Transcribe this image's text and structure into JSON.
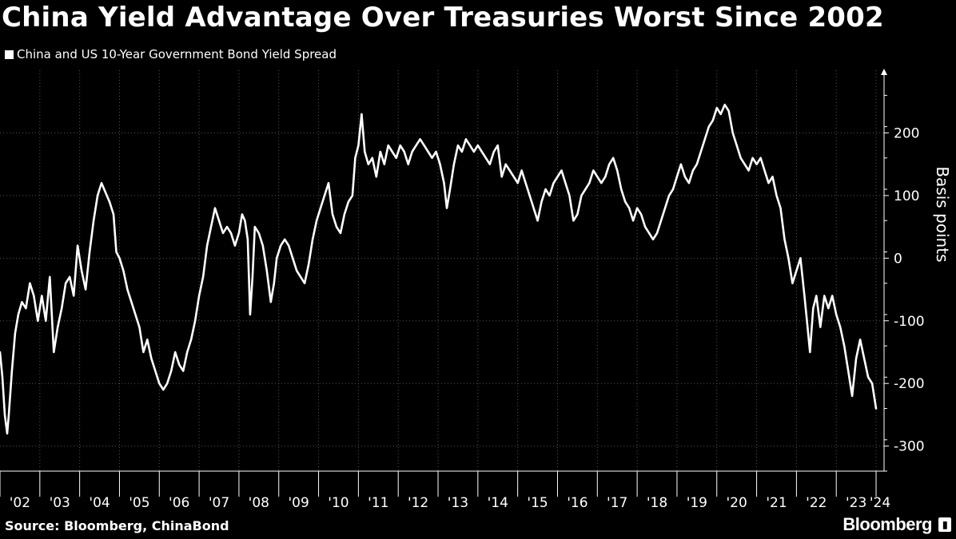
{
  "title": "China Yield Advantage Over Treasuries Worst Since 2002",
  "legend_label": "China and US 10-Year Government Bond Yield Spread",
  "source": "Source: Bloomberg, ChinaBond",
  "brand": "Bloomberg",
  "brand_icon": "terminal-icon",
  "colors": {
    "background": "#000000",
    "line": "#ffffff",
    "grid": "#555555"
  },
  "chart_data": {
    "type": "line",
    "title": "China Yield Advantage Over Treasuries Worst Since 2002",
    "ylabel": "Basis points",
    "ylim": [
      -340,
      300
    ],
    "xlim": [
      2002.0,
      2024.2
    ],
    "y_ticks": [
      {
        "value": 200,
        "label": "200"
      },
      {
        "value": 100,
        "label": "100"
      },
      {
        "value": 0,
        "label": "0"
      },
      {
        "value": -100,
        "label": "-100"
      },
      {
        "value": -200,
        "label": "-200"
      },
      {
        "value": -300,
        "label": "-300"
      }
    ],
    "x_ticks": [
      {
        "value": 2002,
        "label": "'02"
      },
      {
        "value": 2003,
        "label": "'03"
      },
      {
        "value": 2004,
        "label": "'04"
      },
      {
        "value": 2005,
        "label": "'05"
      },
      {
        "value": 2006,
        "label": "'06"
      },
      {
        "value": 2007,
        "label": "'07"
      },
      {
        "value": 2008,
        "label": "'08"
      },
      {
        "value": 2009,
        "label": "'09"
      },
      {
        "value": 2010,
        "label": "'10"
      },
      {
        "value": 2011,
        "label": "'11"
      },
      {
        "value": 2012,
        "label": "'12"
      },
      {
        "value": 2013,
        "label": "'13"
      },
      {
        "value": 2014,
        "label": "'14"
      },
      {
        "value": 2015,
        "label": "'15"
      },
      {
        "value": 2016,
        "label": "'16"
      },
      {
        "value": 2017,
        "label": "'17"
      },
      {
        "value": 2018,
        "label": "'18"
      },
      {
        "value": 2019,
        "label": "'19"
      },
      {
        "value": 2020,
        "label": "'20"
      },
      {
        "value": 2021,
        "label": "'21"
      },
      {
        "value": 2022,
        "label": "'22"
      },
      {
        "value": 2023,
        "label": "'23"
      },
      {
        "value": 2024,
        "label": "'24"
      }
    ],
    "grid": true,
    "series": [
      {
        "name": "China and US 10-Year Government Bond Yield Spread",
        "points": [
          [
            2002.0,
            -150
          ],
          [
            2002.06,
            -190
          ],
          [
            2002.12,
            -250
          ],
          [
            2002.18,
            -280
          ],
          [
            2002.22,
            -250
          ],
          [
            2002.3,
            -180
          ],
          [
            2002.38,
            -120
          ],
          [
            2002.46,
            -90
          ],
          [
            2002.55,
            -70
          ],
          [
            2002.65,
            -80
          ],
          [
            2002.75,
            -40
          ],
          [
            2002.85,
            -60
          ],
          [
            2002.95,
            -100
          ],
          [
            2003.05,
            -60
          ],
          [
            2003.15,
            -100
          ],
          [
            2003.25,
            -30
          ],
          [
            2003.35,
            -150
          ],
          [
            2003.45,
            -110
          ],
          [
            2003.55,
            -80
          ],
          [
            2003.65,
            -40
          ],
          [
            2003.75,
            -30
          ],
          [
            2003.85,
            -60
          ],
          [
            2003.95,
            20
          ],
          [
            2004.05,
            -20
          ],
          [
            2004.15,
            -50
          ],
          [
            2004.25,
            10
          ],
          [
            2004.35,
            60
          ],
          [
            2004.45,
            100
          ],
          [
            2004.55,
            120
          ],
          [
            2004.65,
            105
          ],
          [
            2004.75,
            90
          ],
          [
            2004.85,
            70
          ],
          [
            2004.92,
            10
          ],
          [
            2005.0,
            0
          ],
          [
            2005.1,
            -20
          ],
          [
            2005.2,
            -50
          ],
          [
            2005.3,
            -70
          ],
          [
            2005.4,
            -90
          ],
          [
            2005.5,
            -110
          ],
          [
            2005.6,
            -150
          ],
          [
            2005.7,
            -130
          ],
          [
            2005.8,
            -160
          ],
          [
            2005.9,
            -180
          ],
          [
            2006.0,
            -200
          ],
          [
            2006.1,
            -210
          ],
          [
            2006.2,
            -200
          ],
          [
            2006.3,
            -180
          ],
          [
            2006.4,
            -150
          ],
          [
            2006.5,
            -170
          ],
          [
            2006.6,
            -180
          ],
          [
            2006.7,
            -150
          ],
          [
            2006.8,
            -130
          ],
          [
            2006.9,
            -100
          ],
          [
            2007.0,
            -60
          ],
          [
            2007.1,
            -30
          ],
          [
            2007.2,
            20
          ],
          [
            2007.3,
            50
          ],
          [
            2007.4,
            80
          ],
          [
            2007.5,
            60
          ],
          [
            2007.6,
            40
          ],
          [
            2007.7,
            50
          ],
          [
            2007.8,
            40
          ],
          [
            2007.9,
            20
          ],
          [
            2008.0,
            40
          ],
          [
            2008.08,
            70
          ],
          [
            2008.15,
            60
          ],
          [
            2008.22,
            30
          ],
          [
            2008.28,
            -90
          ],
          [
            2008.34,
            -30
          ],
          [
            2008.4,
            50
          ],
          [
            2008.5,
            40
          ],
          [
            2008.6,
            20
          ],
          [
            2008.7,
            -20
          ],
          [
            2008.8,
            -70
          ],
          [
            2008.88,
            -40
          ],
          [
            2008.95,
            0
          ],
          [
            2009.05,
            20
          ],
          [
            2009.15,
            30
          ],
          [
            2009.25,
            20
          ],
          [
            2009.35,
            0
          ],
          [
            2009.45,
            -20
          ],
          [
            2009.55,
            -30
          ],
          [
            2009.65,
            -40
          ],
          [
            2009.75,
            -10
          ],
          [
            2009.85,
            30
          ],
          [
            2009.95,
            60
          ],
          [
            2010.05,
            80
          ],
          [
            2010.15,
            100
          ],
          [
            2010.25,
            120
          ],
          [
            2010.35,
            70
          ],
          [
            2010.45,
            50
          ],
          [
            2010.55,
            40
          ],
          [
            2010.65,
            70
          ],
          [
            2010.75,
            90
          ],
          [
            2010.85,
            100
          ],
          [
            2010.92,
            160
          ],
          [
            2011.0,
            180
          ],
          [
            2011.08,
            230
          ],
          [
            2011.16,
            170
          ],
          [
            2011.25,
            150
          ],
          [
            2011.35,
            160
          ],
          [
            2011.45,
            130
          ],
          [
            2011.55,
            170
          ],
          [
            2011.65,
            150
          ],
          [
            2011.75,
            180
          ],
          [
            2011.85,
            170
          ],
          [
            2011.95,
            160
          ],
          [
            2012.05,
            180
          ],
          [
            2012.15,
            170
          ],
          [
            2012.25,
            150
          ],
          [
            2012.35,
            170
          ],
          [
            2012.45,
            180
          ],
          [
            2012.55,
            190
          ],
          [
            2012.65,
            180
          ],
          [
            2012.75,
            170
          ],
          [
            2012.85,
            160
          ],
          [
            2012.95,
            170
          ],
          [
            2013.05,
            150
          ],
          [
            2013.15,
            120
          ],
          [
            2013.22,
            80
          ],
          [
            2013.3,
            110
          ],
          [
            2013.4,
            150
          ],
          [
            2013.5,
            180
          ],
          [
            2013.6,
            170
          ],
          [
            2013.7,
            190
          ],
          [
            2013.8,
            180
          ],
          [
            2013.9,
            170
          ],
          [
            2014.0,
            180
          ],
          [
            2014.1,
            170
          ],
          [
            2014.2,
            160
          ],
          [
            2014.3,
            150
          ],
          [
            2014.4,
            170
          ],
          [
            2014.5,
            180
          ],
          [
            2014.6,
            130
          ],
          [
            2014.7,
            150
          ],
          [
            2014.8,
            140
          ],
          [
            2014.9,
            130
          ],
          [
            2015.0,
            120
          ],
          [
            2015.1,
            140
          ],
          [
            2015.2,
            120
          ],
          [
            2015.3,
            100
          ],
          [
            2015.4,
            80
          ],
          [
            2015.5,
            60
          ],
          [
            2015.6,
            90
          ],
          [
            2015.7,
            110
          ],
          [
            2015.8,
            100
          ],
          [
            2015.9,
            120
          ],
          [
            2016.0,
            130
          ],
          [
            2016.1,
            140
          ],
          [
            2016.2,
            120
          ],
          [
            2016.3,
            100
          ],
          [
            2016.4,
            60
          ],
          [
            2016.5,
            70
          ],
          [
            2016.6,
            100
          ],
          [
            2016.7,
            110
          ],
          [
            2016.8,
            120
          ],
          [
            2016.9,
            140
          ],
          [
            2017.0,
            130
          ],
          [
            2017.1,
            120
          ],
          [
            2017.2,
            130
          ],
          [
            2017.3,
            150
          ],
          [
            2017.4,
            160
          ],
          [
            2017.5,
            140
          ],
          [
            2017.6,
            110
          ],
          [
            2017.7,
            90
          ],
          [
            2017.8,
            80
          ],
          [
            2017.9,
            60
          ],
          [
            2018.0,
            80
          ],
          [
            2018.1,
            70
          ],
          [
            2018.2,
            50
          ],
          [
            2018.3,
            40
          ],
          [
            2018.4,
            30
          ],
          [
            2018.5,
            40
          ],
          [
            2018.6,
            60
          ],
          [
            2018.7,
            80
          ],
          [
            2018.8,
            100
          ],
          [
            2018.9,
            110
          ],
          [
            2019.0,
            130
          ],
          [
            2019.1,
            150
          ],
          [
            2019.2,
            130
          ],
          [
            2019.3,
            120
          ],
          [
            2019.4,
            140
          ],
          [
            2019.5,
            150
          ],
          [
            2019.6,
            170
          ],
          [
            2019.7,
            190
          ],
          [
            2019.8,
            210
          ],
          [
            2019.9,
            220
          ],
          [
            2020.0,
            240
          ],
          [
            2020.1,
            230
          ],
          [
            2020.2,
            245
          ],
          [
            2020.3,
            235
          ],
          [
            2020.4,
            200
          ],
          [
            2020.5,
            180
          ],
          [
            2020.6,
            160
          ],
          [
            2020.7,
            150
          ],
          [
            2020.8,
            140
          ],
          [
            2020.9,
            160
          ],
          [
            2021.0,
            150
          ],
          [
            2021.1,
            160
          ],
          [
            2021.2,
            140
          ],
          [
            2021.3,
            120
          ],
          [
            2021.4,
            130
          ],
          [
            2021.5,
            100
          ],
          [
            2021.6,
            80
          ],
          [
            2021.7,
            30
          ],
          [
            2021.8,
            0
          ],
          [
            2021.9,
            -40
          ],
          [
            2022.0,
            -20
          ],
          [
            2022.1,
            0
          ],
          [
            2022.2,
            -60
          ],
          [
            2022.28,
            -110
          ],
          [
            2022.34,
            -150
          ],
          [
            2022.42,
            -80
          ],
          [
            2022.5,
            -60
          ],
          [
            2022.6,
            -110
          ],
          [
            2022.7,
            -60
          ],
          [
            2022.8,
            -80
          ],
          [
            2022.9,
            -60
          ],
          [
            2023.0,
            -90
          ],
          [
            2023.1,
            -110
          ],
          [
            2023.2,
            -140
          ],
          [
            2023.3,
            -180
          ],
          [
            2023.4,
            -220
          ],
          [
            2023.5,
            -160
          ],
          [
            2023.6,
            -130
          ],
          [
            2023.7,
            -160
          ],
          [
            2023.8,
            -190
          ],
          [
            2023.9,
            -200
          ],
          [
            2024.0,
            -240
          ]
        ]
      }
    ]
  }
}
